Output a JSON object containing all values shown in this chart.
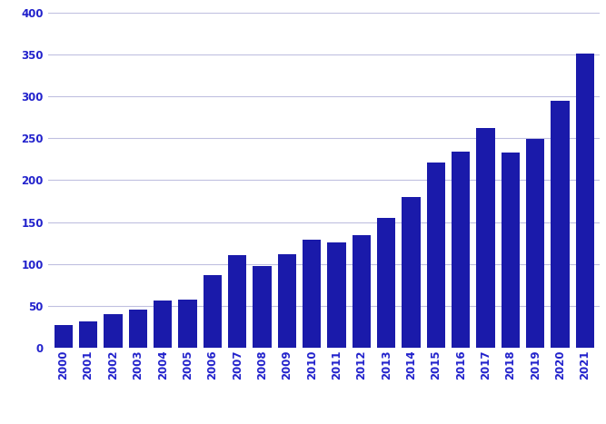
{
  "categories": [
    "2000",
    "2001",
    "2002",
    "2003",
    "2004",
    "2005",
    "2006",
    "2007",
    "2008",
    "2009",
    "2010",
    "2011",
    "2012",
    "2013",
    "2014",
    "2015",
    "2016",
    "2017",
    "2018",
    "2019",
    "2020",
    "2021"
  ],
  "values": [
    27,
    31,
    40,
    46,
    56,
    57,
    87,
    111,
    97,
    112,
    129,
    126,
    134,
    155,
    180,
    221,
    234,
    262,
    233,
    249,
    295,
    351
  ],
  "bar_color": "#1a1aaa",
  "ylim": [
    0,
    400
  ],
  "yticks": [
    0,
    50,
    100,
    150,
    200,
    250,
    300,
    350,
    400
  ],
  "grid_color": "#c0c0e0",
  "tick_color": "#2222cc",
  "background_color": "#ffffff",
  "bar_width": 0.75,
  "figsize": [
    6.67,
    4.67
  ],
  "dpi": 100
}
